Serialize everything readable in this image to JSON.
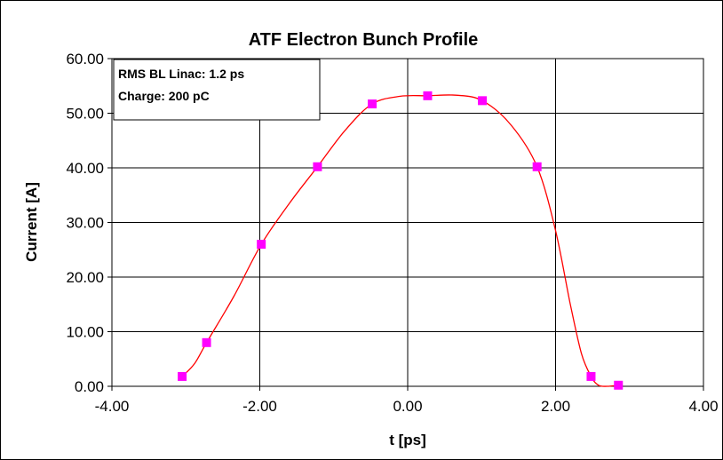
{
  "chart_data": {
    "type": "scatter",
    "title": "ATF Electron Bunch Profile",
    "xlabel": "t [ps]",
    "ylabel": "Current [A]",
    "xlim": [
      -4.0,
      4.0
    ],
    "ylim": [
      0.0,
      60.0
    ],
    "x_ticks": [
      "-4.00",
      "-2.00",
      "0.00",
      "2.00",
      "4.00"
    ],
    "y_ticks": [
      "0.00",
      "10.00",
      "20.00",
      "30.00",
      "40.00",
      "50.00",
      "60.00"
    ],
    "grid": true,
    "annotation": [
      "RMS BL Linac: 1.2 ps",
      "Charge: 200 pC"
    ],
    "series": [
      {
        "marker_color": "#ff00ff",
        "line_color": "#ff0000",
        "line_style": "smooth",
        "points": [
          {
            "x": -3.05,
            "y": 1.8
          },
          {
            "x": -2.72,
            "y": 8.0
          },
          {
            "x": -1.98,
            "y": 26.0
          },
          {
            "x": -1.22,
            "y": 40.2
          },
          {
            "x": -0.48,
            "y": 51.7
          },
          {
            "x": 0.27,
            "y": 53.2
          },
          {
            "x": 1.01,
            "y": 52.3
          },
          {
            "x": 1.75,
            "y": 40.2
          },
          {
            "x": 2.48,
            "y": 1.8
          },
          {
            "x": 2.85,
            "y": 0.2
          }
        ],
        "curve": [
          {
            "x": -3.05,
            "y": 1.8
          },
          {
            "x": -2.88,
            "y": 4.2
          },
          {
            "x": -2.72,
            "y": 8.0
          },
          {
            "x": -2.35,
            "y": 16.5
          },
          {
            "x": -1.98,
            "y": 26.0
          },
          {
            "x": -1.6,
            "y": 33.5
          },
          {
            "x": -1.22,
            "y": 40.2
          },
          {
            "x": -0.85,
            "y": 46.8
          },
          {
            "x": -0.48,
            "y": 51.7
          },
          {
            "x": -0.1,
            "y": 53.1
          },
          {
            "x": 0.27,
            "y": 53.2
          },
          {
            "x": 0.65,
            "y": 53.3
          },
          {
            "x": 1.01,
            "y": 52.3
          },
          {
            "x": 1.4,
            "y": 47.8
          },
          {
            "x": 1.75,
            "y": 40.2
          },
          {
            "x": 2.0,
            "y": 28.5
          },
          {
            "x": 2.2,
            "y": 15.0
          },
          {
            "x": 2.35,
            "y": 6.0
          },
          {
            "x": 2.48,
            "y": 1.8
          },
          {
            "x": 2.58,
            "y": 0.2
          },
          {
            "x": 2.7,
            "y": 0.0
          },
          {
            "x": 2.85,
            "y": 0.2
          }
        ]
      }
    ]
  }
}
